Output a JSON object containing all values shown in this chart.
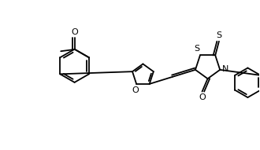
{
  "bg_color": "#ffffff",
  "line_color": "#000000",
  "lw": 1.3,
  "figsize": [
    3.3,
    1.91
  ],
  "dpi": 100,
  "xlim": [
    -3.5,
    3.5
  ],
  "ylim": [
    -1.8,
    1.8
  ]
}
